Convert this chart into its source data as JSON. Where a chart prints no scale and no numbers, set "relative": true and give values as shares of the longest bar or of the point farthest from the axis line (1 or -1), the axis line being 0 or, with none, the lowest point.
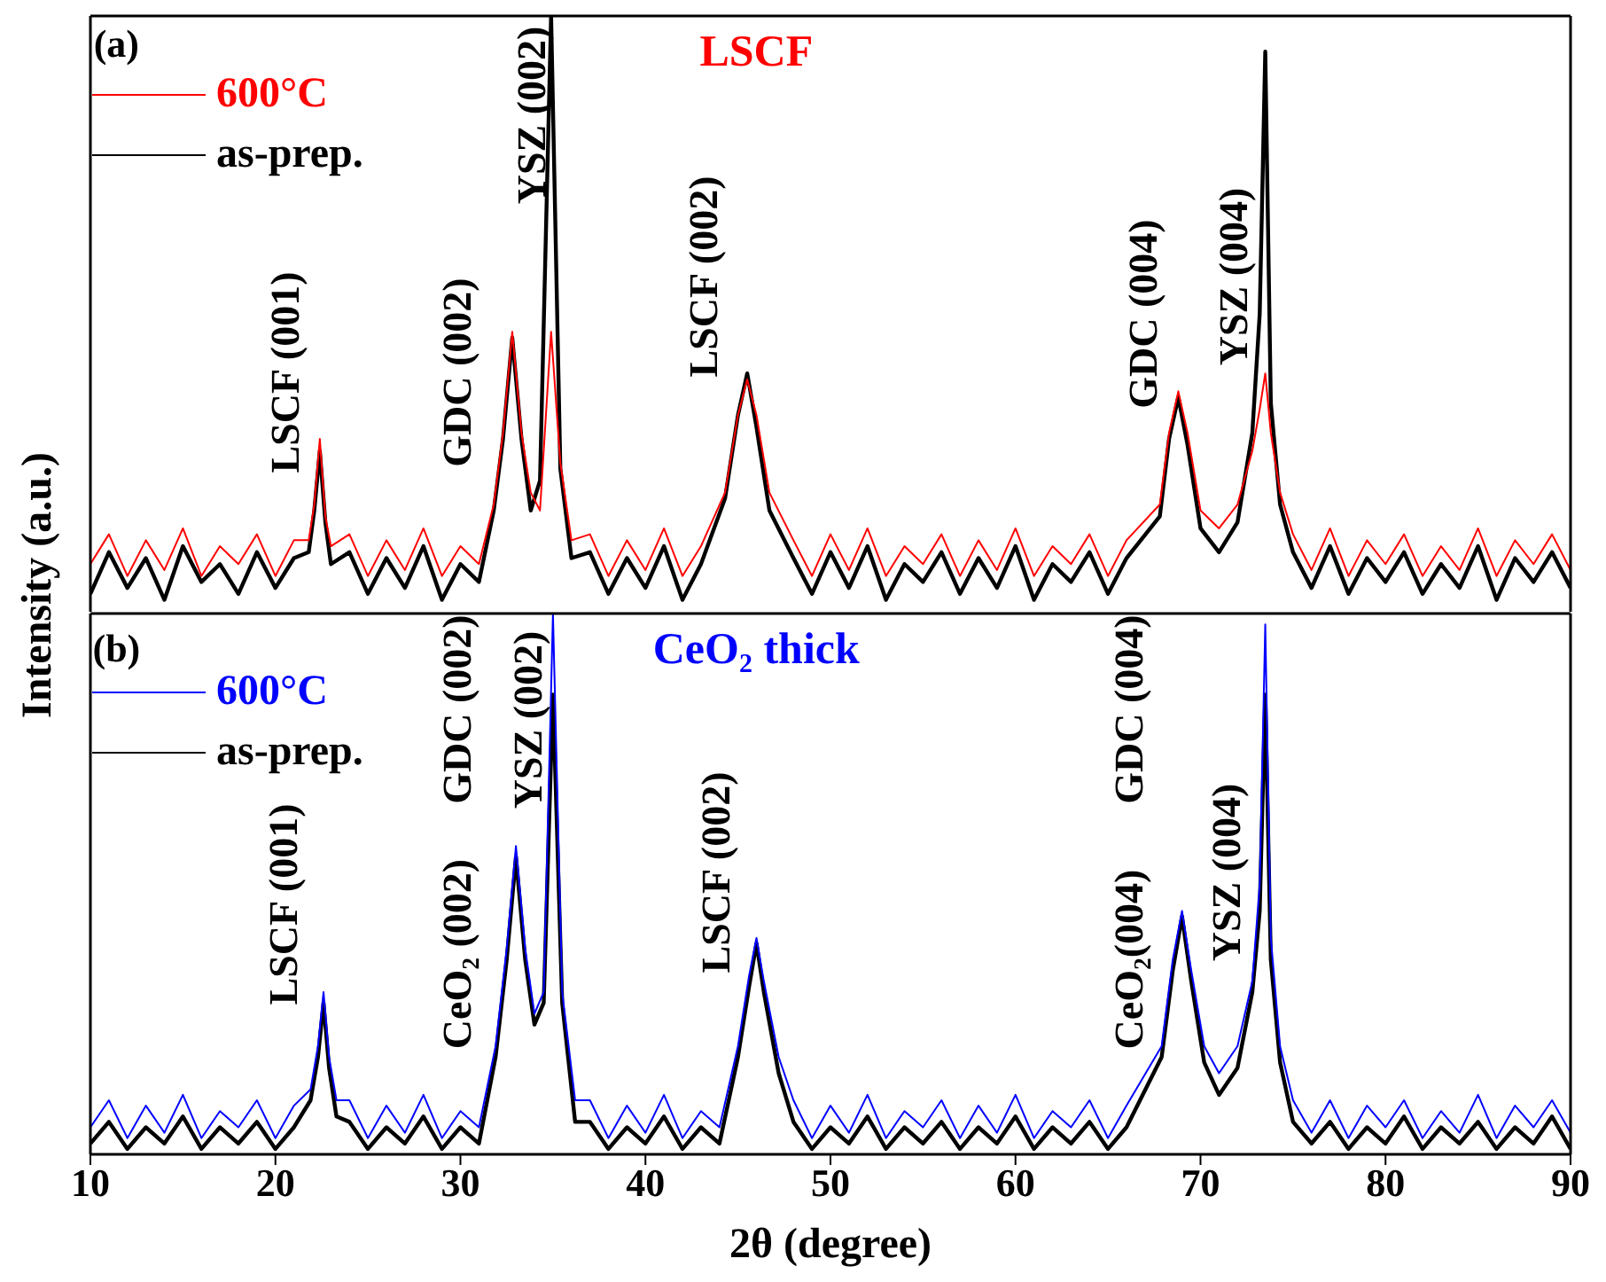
{
  "chart_data": [
    {
      "type": "line",
      "title": "LSCF",
      "ylabel": "Intensity (a.u.)",
      "relative": true,
      "legend": "top left",
      "tick_labels": false,
      "xlim": [
        10,
        90
      ],
      "xticks": [
        10,
        20,
        30,
        40,
        50,
        60,
        70,
        80,
        90
      ],
      "x": [
        10,
        11,
        12,
        13,
        14,
        15,
        16,
        17,
        18,
        19,
        20,
        21,
        21.8,
        22.1,
        22.4,
        22.7,
        23,
        24,
        25,
        26,
        27,
        28,
        29,
        30,
        31,
        31.8,
        32.3,
        32.8,
        33.3,
        33.8,
        34.3,
        34.9,
        35.4,
        36,
        37,
        38,
        39,
        40,
        41,
        42,
        43,
        44.3,
        45,
        45.5,
        46,
        46.7,
        48,
        49,
        50,
        51,
        52,
        53,
        54,
        55,
        56,
        57,
        58,
        59,
        60,
        61,
        62,
        63,
        64,
        65,
        66,
        67.8,
        68.3,
        68.8,
        69.3,
        70,
        71,
        72,
        72.8,
        73.2,
        73.5,
        73.8,
        74.3,
        75,
        76,
        77,
        78,
        79,
        80,
        81,
        82,
        83,
        84,
        85,
        86,
        87,
        88,
        89,
        90
      ],
      "series": [
        {
          "name": "600°C",
          "color": "#ff0000",
          "values": [
            0.08,
            0.13,
            0.06,
            0.12,
            0.07,
            0.14,
            0.06,
            0.11,
            0.08,
            0.13,
            0.06,
            0.12,
            0.12,
            0.18,
            0.29,
            0.16,
            0.11,
            0.13,
            0.06,
            0.12,
            0.07,
            0.14,
            0.06,
            0.11,
            0.08,
            0.18,
            0.3,
            0.47,
            0.3,
            0.2,
            0.17,
            0.47,
            0.25,
            0.12,
            0.13,
            0.06,
            0.12,
            0.07,
            0.14,
            0.06,
            0.11,
            0.2,
            0.33,
            0.39,
            0.33,
            0.2,
            0.12,
            0.06,
            0.13,
            0.07,
            0.14,
            0.06,
            0.11,
            0.08,
            0.13,
            0.06,
            0.12,
            0.07,
            0.14,
            0.06,
            0.11,
            0.08,
            0.13,
            0.06,
            0.12,
            0.18,
            0.3,
            0.37,
            0.3,
            0.17,
            0.14,
            0.18,
            0.27,
            0.34,
            0.4,
            0.3,
            0.2,
            0.13,
            0.07,
            0.14,
            0.06,
            0.12,
            0.08,
            0.13,
            0.06,
            0.11,
            0.07,
            0.14,
            0.06,
            0.12,
            0.08,
            0.13,
            0.07
          ]
        },
        {
          "name": "as-prep.",
          "color": "#000000",
          "values": [
            0.03,
            0.1,
            0.04,
            0.09,
            0.02,
            0.11,
            0.05,
            0.08,
            0.03,
            0.1,
            0.04,
            0.09,
            0.1,
            0.17,
            0.27,
            0.15,
            0.08,
            0.1,
            0.03,
            0.09,
            0.04,
            0.11,
            0.02,
            0.08,
            0.05,
            0.17,
            0.29,
            0.46,
            0.29,
            0.17,
            0.22,
            1,
            0.24,
            0.09,
            0.1,
            0.03,
            0.09,
            0.04,
            0.11,
            0.02,
            0.08,
            0.19,
            0.33,
            0.4,
            0.31,
            0.17,
            0.09,
            0.03,
            0.1,
            0.04,
            0.11,
            0.02,
            0.08,
            0.05,
            0.1,
            0.03,
            0.09,
            0.04,
            0.11,
            0.02,
            0.08,
            0.05,
            0.1,
            0.03,
            0.09,
            0.16,
            0.29,
            0.36,
            0.28,
            0.14,
            0.1,
            0.15,
            0.3,
            0.5,
            0.94,
            0.35,
            0.18,
            0.1,
            0.04,
            0.11,
            0.03,
            0.09,
            0.05,
            0.1,
            0.03,
            0.08,
            0.04,
            0.11,
            0.02,
            0.09,
            0.05,
            0.1,
            0.04
          ]
        }
      ],
      "annotations": [
        "(a)",
        "LSCF (001)",
        "GDC (002)",
        "YSZ (002)",
        "LSCF (002)",
        "GDC (004)",
        "YSZ (004)"
      ]
    },
    {
      "type": "line",
      "title": "CeO₂ thick",
      "xlabel": "2θ (degree)",
      "relative": true,
      "legend": "top left",
      "tick_labels": "x",
      "xlim": [
        10,
        90
      ],
      "xticks": [
        10,
        20,
        30,
        40,
        50,
        60,
        70,
        80,
        90
      ],
      "x": [
        10,
        11,
        12,
        13,
        14,
        15,
        16,
        17,
        18,
        19,
        20,
        21,
        21.9,
        22.3,
        22.6,
        22.9,
        23.3,
        24,
        25,
        26,
        27,
        28,
        29,
        30,
        31,
        31.9,
        32.5,
        33,
        33.5,
        34,
        34.5,
        35,
        35.5,
        36.2,
        37,
        38,
        39,
        40,
        41,
        42,
        43,
        44,
        45,
        45.6,
        46,
        46.4,
        47.2,
        48,
        49,
        50,
        51,
        52,
        53,
        54,
        55,
        56,
        57,
        58,
        59,
        60,
        61,
        62,
        63,
        64,
        65,
        66,
        67.9,
        68.5,
        69,
        69.5,
        70.2,
        71,
        72,
        72.8,
        73.2,
        73.5,
        73.8,
        74.3,
        75,
        76,
        77,
        78,
        79,
        80,
        81,
        82,
        83,
        84,
        85,
        86,
        87,
        88,
        89,
        90
      ],
      "series": [
        {
          "name": "600°C",
          "color": "#0000ff",
          "values": [
            0.05,
            0.1,
            0.03,
            0.09,
            0.04,
            0.11,
            0.03,
            0.08,
            0.05,
            0.1,
            0.03,
            0.09,
            0.12,
            0.2,
            0.3,
            0.18,
            0.1,
            0.1,
            0.03,
            0.09,
            0.04,
            0.11,
            0.03,
            0.08,
            0.05,
            0.2,
            0.38,
            0.57,
            0.38,
            0.26,
            0.3,
            1,
            0.3,
            0.1,
            0.1,
            0.03,
            0.09,
            0.04,
            0.11,
            0.03,
            0.08,
            0.05,
            0.2,
            0.33,
            0.4,
            0.32,
            0.18,
            0.1,
            0.03,
            0.09,
            0.04,
            0.11,
            0.03,
            0.08,
            0.05,
            0.1,
            0.03,
            0.09,
            0.04,
            0.11,
            0.03,
            0.08,
            0.05,
            0.1,
            0.03,
            0.09,
            0.2,
            0.36,
            0.45,
            0.34,
            0.2,
            0.15,
            0.2,
            0.32,
            0.5,
            0.98,
            0.4,
            0.2,
            0.1,
            0.04,
            0.1,
            0.03,
            0.09,
            0.05,
            0.1,
            0.03,
            0.08,
            0.04,
            0.11,
            0.03,
            0.09,
            0.05,
            0.1,
            0.04
          ]
        },
        {
          "name": "as-prep.",
          "color": "#000000",
          "values": [
            0.02,
            0.06,
            0.01,
            0.05,
            0.02,
            0.07,
            0.01,
            0.05,
            0.02,
            0.06,
            0.01,
            0.05,
            0.1,
            0.18,
            0.28,
            0.16,
            0.07,
            0.06,
            0.01,
            0.05,
            0.02,
            0.07,
            0.01,
            0.05,
            0.02,
            0.18,
            0.36,
            0.55,
            0.36,
            0.24,
            0.28,
            0.85,
            0.28,
            0.06,
            0.06,
            0.01,
            0.05,
            0.02,
            0.07,
            0.01,
            0.05,
            0.02,
            0.18,
            0.31,
            0.39,
            0.3,
            0.15,
            0.06,
            0.01,
            0.05,
            0.02,
            0.07,
            0.01,
            0.05,
            0.02,
            0.06,
            0.01,
            0.05,
            0.02,
            0.07,
            0.01,
            0.05,
            0.02,
            0.06,
            0.01,
            0.05,
            0.18,
            0.34,
            0.44,
            0.32,
            0.17,
            0.11,
            0.16,
            0.3,
            0.45,
            0.85,
            0.36,
            0.17,
            0.06,
            0.02,
            0.06,
            0.01,
            0.05,
            0.02,
            0.07,
            0.01,
            0.05,
            0.02,
            0.06,
            0.01,
            0.05,
            0.02,
            0.07,
            0.01
          ]
        }
      ],
      "annotations": [
        "(b)",
        "LSCF (001)",
        "CeO₂ (002)",
        "GDC (002)",
        "YSZ (002)",
        "LSCF (002)",
        "CeO₂(004)",
        "GDC (004)",
        "YSZ (004)"
      ]
    }
  ]
}
